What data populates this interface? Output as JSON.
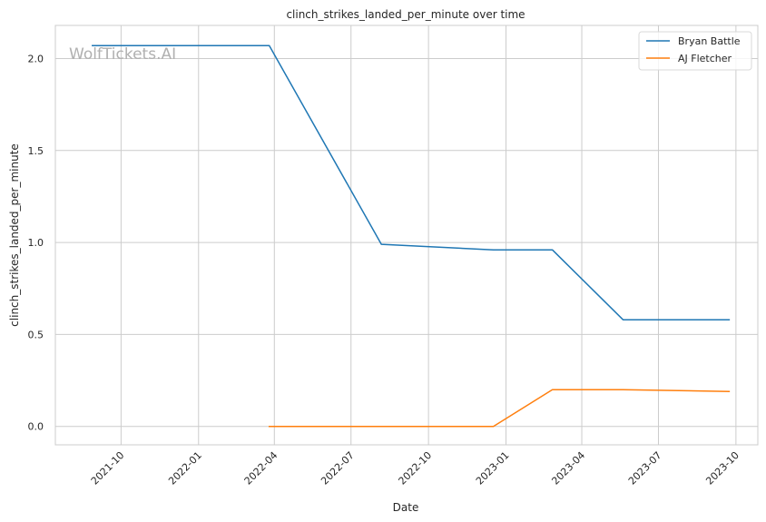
{
  "chart_data": {
    "type": "line",
    "title": "clinch_strikes_landed_per_minute over time",
    "xlabel": "Date",
    "ylabel": "clinch_strikes_landed_per_minute",
    "watermark": "WolfTickets.AI",
    "x_ticks": [
      "2021-10",
      "2022-01",
      "2022-04",
      "2022-07",
      "2022-10",
      "2023-01",
      "2023-04",
      "2023-07",
      "2023-10"
    ],
    "y_ticks": [
      "0.0",
      "0.5",
      "1.0",
      "1.5",
      "2.0"
    ],
    "ylim": [
      -0.1,
      2.18
    ],
    "xlim": [
      "2021-07-15",
      "2023-10-27"
    ],
    "grid": true,
    "legend_position": "top-right",
    "series": [
      {
        "name": "Bryan Battle",
        "color": "#1f77b4",
        "points": [
          {
            "x": "2021-08-28",
            "y": 2.07
          },
          {
            "x": "2022-03-26",
            "y": 2.07
          },
          {
            "x": "2022-08-06",
            "y": 0.99
          },
          {
            "x": "2022-12-17",
            "y": 0.96
          },
          {
            "x": "2023-02-25",
            "y": 0.96
          },
          {
            "x": "2023-05-20",
            "y": 0.58
          },
          {
            "x": "2023-09-23",
            "y": 0.58
          }
        ]
      },
      {
        "name": "AJ Fletcher",
        "color": "#ff7f0e",
        "points": [
          {
            "x": "2022-03-26",
            "y": 0.0
          },
          {
            "x": "2022-12-17",
            "y": 0.0
          },
          {
            "x": "2023-02-25",
            "y": 0.2
          },
          {
            "x": "2023-05-20",
            "y": 0.2
          },
          {
            "x": "2023-09-23",
            "y": 0.19
          }
        ]
      }
    ]
  }
}
